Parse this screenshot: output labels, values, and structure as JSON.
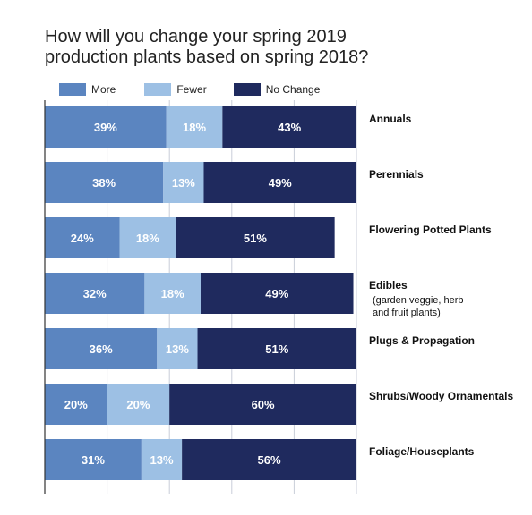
{
  "title_lines": [
    "How will you change your spring 2019",
    "production plants based on spring 2018?"
  ],
  "colors": {
    "more": "#5b85c0",
    "fewer": "#9dc0e4",
    "no_change": "#1f2a5e",
    "grid": "#c9ced8",
    "axis": "#333333"
  },
  "legend": [
    {
      "key": "more",
      "label": "More"
    },
    {
      "key": "fewer",
      "label": "Fewer"
    },
    {
      "key": "no_change",
      "label": "No Change"
    }
  ],
  "chart_data": {
    "type": "bar",
    "orientation": "horizontal-stacked-100",
    "title": "How will you change your spring 2019 production plants based on spring 2018?",
    "xlabel": "",
    "ylabel": "",
    "xlim": [
      0,
      100
    ],
    "grid": true,
    "legend_position": "top",
    "categories": [
      "Annuals",
      "Perennials",
      "Flowering Potted Plants",
      "Edibles",
      "Plugs & Propagation",
      "Shrubs/Woody Ornamentals",
      "Foliage/Houseplants"
    ],
    "category_notes": {
      "Edibles": [
        "(garden veggie, herb",
        " and fruit plants)"
      ]
    },
    "series": [
      {
        "name": "More",
        "key": "more",
        "values": [
          39,
          38,
          24,
          32,
          36,
          20,
          31
        ]
      },
      {
        "name": "Fewer",
        "key": "fewer",
        "values": [
          18,
          13,
          18,
          18,
          13,
          20,
          13
        ]
      },
      {
        "name": "No Change",
        "key": "no_change",
        "values": [
          43,
          49,
          51,
          49,
          51,
          60,
          56
        ]
      }
    ]
  }
}
